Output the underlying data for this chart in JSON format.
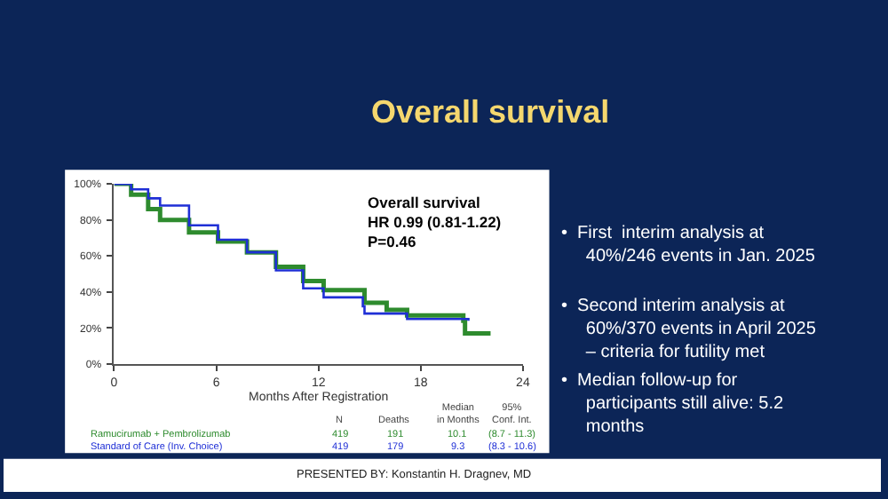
{
  "chart_data": {
    "type": "step",
    "title": "Overall survival",
    "xlabel": "Months After Registration",
    "xlim": [
      0,
      24
    ],
    "xticks": [
      0,
      6,
      12,
      18,
      24
    ],
    "ylim": [
      0,
      100
    ],
    "yticks": [
      {
        "value": 0,
        "label": "0%"
      },
      {
        "value": 20,
        "label": "20%"
      },
      {
        "value": 40,
        "label": "40%"
      },
      {
        "value": 60,
        "label": "60%"
      },
      {
        "value": 80,
        "label": "80%"
      },
      {
        "value": 100,
        "label": "100%"
      }
    ],
    "legend": false,
    "marker": "none",
    "line_style": "solid",
    "series": [
      {
        "name": "Ramucirumab + Pembrolizumab",
        "color": "#2e8b2e",
        "x": [
          0,
          1,
          2,
          2.7,
          4.4,
          6.1,
          7.8,
          9.5,
          11.1,
          12.3,
          14.7,
          16,
          17.2,
          20.5,
          20.6,
          22.1
        ],
        "values": [
          100,
          94,
          86,
          80,
          73,
          68,
          62,
          54,
          46,
          41,
          34,
          30,
          27,
          24,
          17,
          17
        ]
      },
      {
        "name": "Standard of Care (Inv. Choice)",
        "color": "#1f2fd6",
        "x": [
          0,
          1,
          2,
          2.7,
          4.4,
          6.1,
          7.8,
          9.5,
          11.1,
          12.3,
          14.6,
          14.7,
          17.1,
          17.2,
          20.5,
          20.8
        ],
        "values": [
          100,
          97,
          92,
          88,
          77,
          69,
          62,
          52,
          42,
          37,
          32,
          28,
          28,
          25,
          25,
          24
        ]
      }
    ],
    "annotations": [
      "Overall survival\nHR 0.99 (0.81-1.22)\nP=0.46",
      "•  First  interim analysis at\n40%/246 events in Jan. 2025",
      "•  Second interim analysis at\n60%/370 events in April 2025\n– criteria for futility met",
      "•  Median follow-up for\nparticipants still alive: 5.2\nmonths",
      "PRESENTED BY: Konstantin H. Dragnev, MD",
      "N",
      "Deaths",
      "Median\nin Months",
      "95%\nConf. Int.",
      "419",
      "191",
      "10.1",
      "(8.7 - 11.3)",
      "419",
      "179",
      "9.3",
      "(8.3 - 10.6)"
    ]
  }
}
